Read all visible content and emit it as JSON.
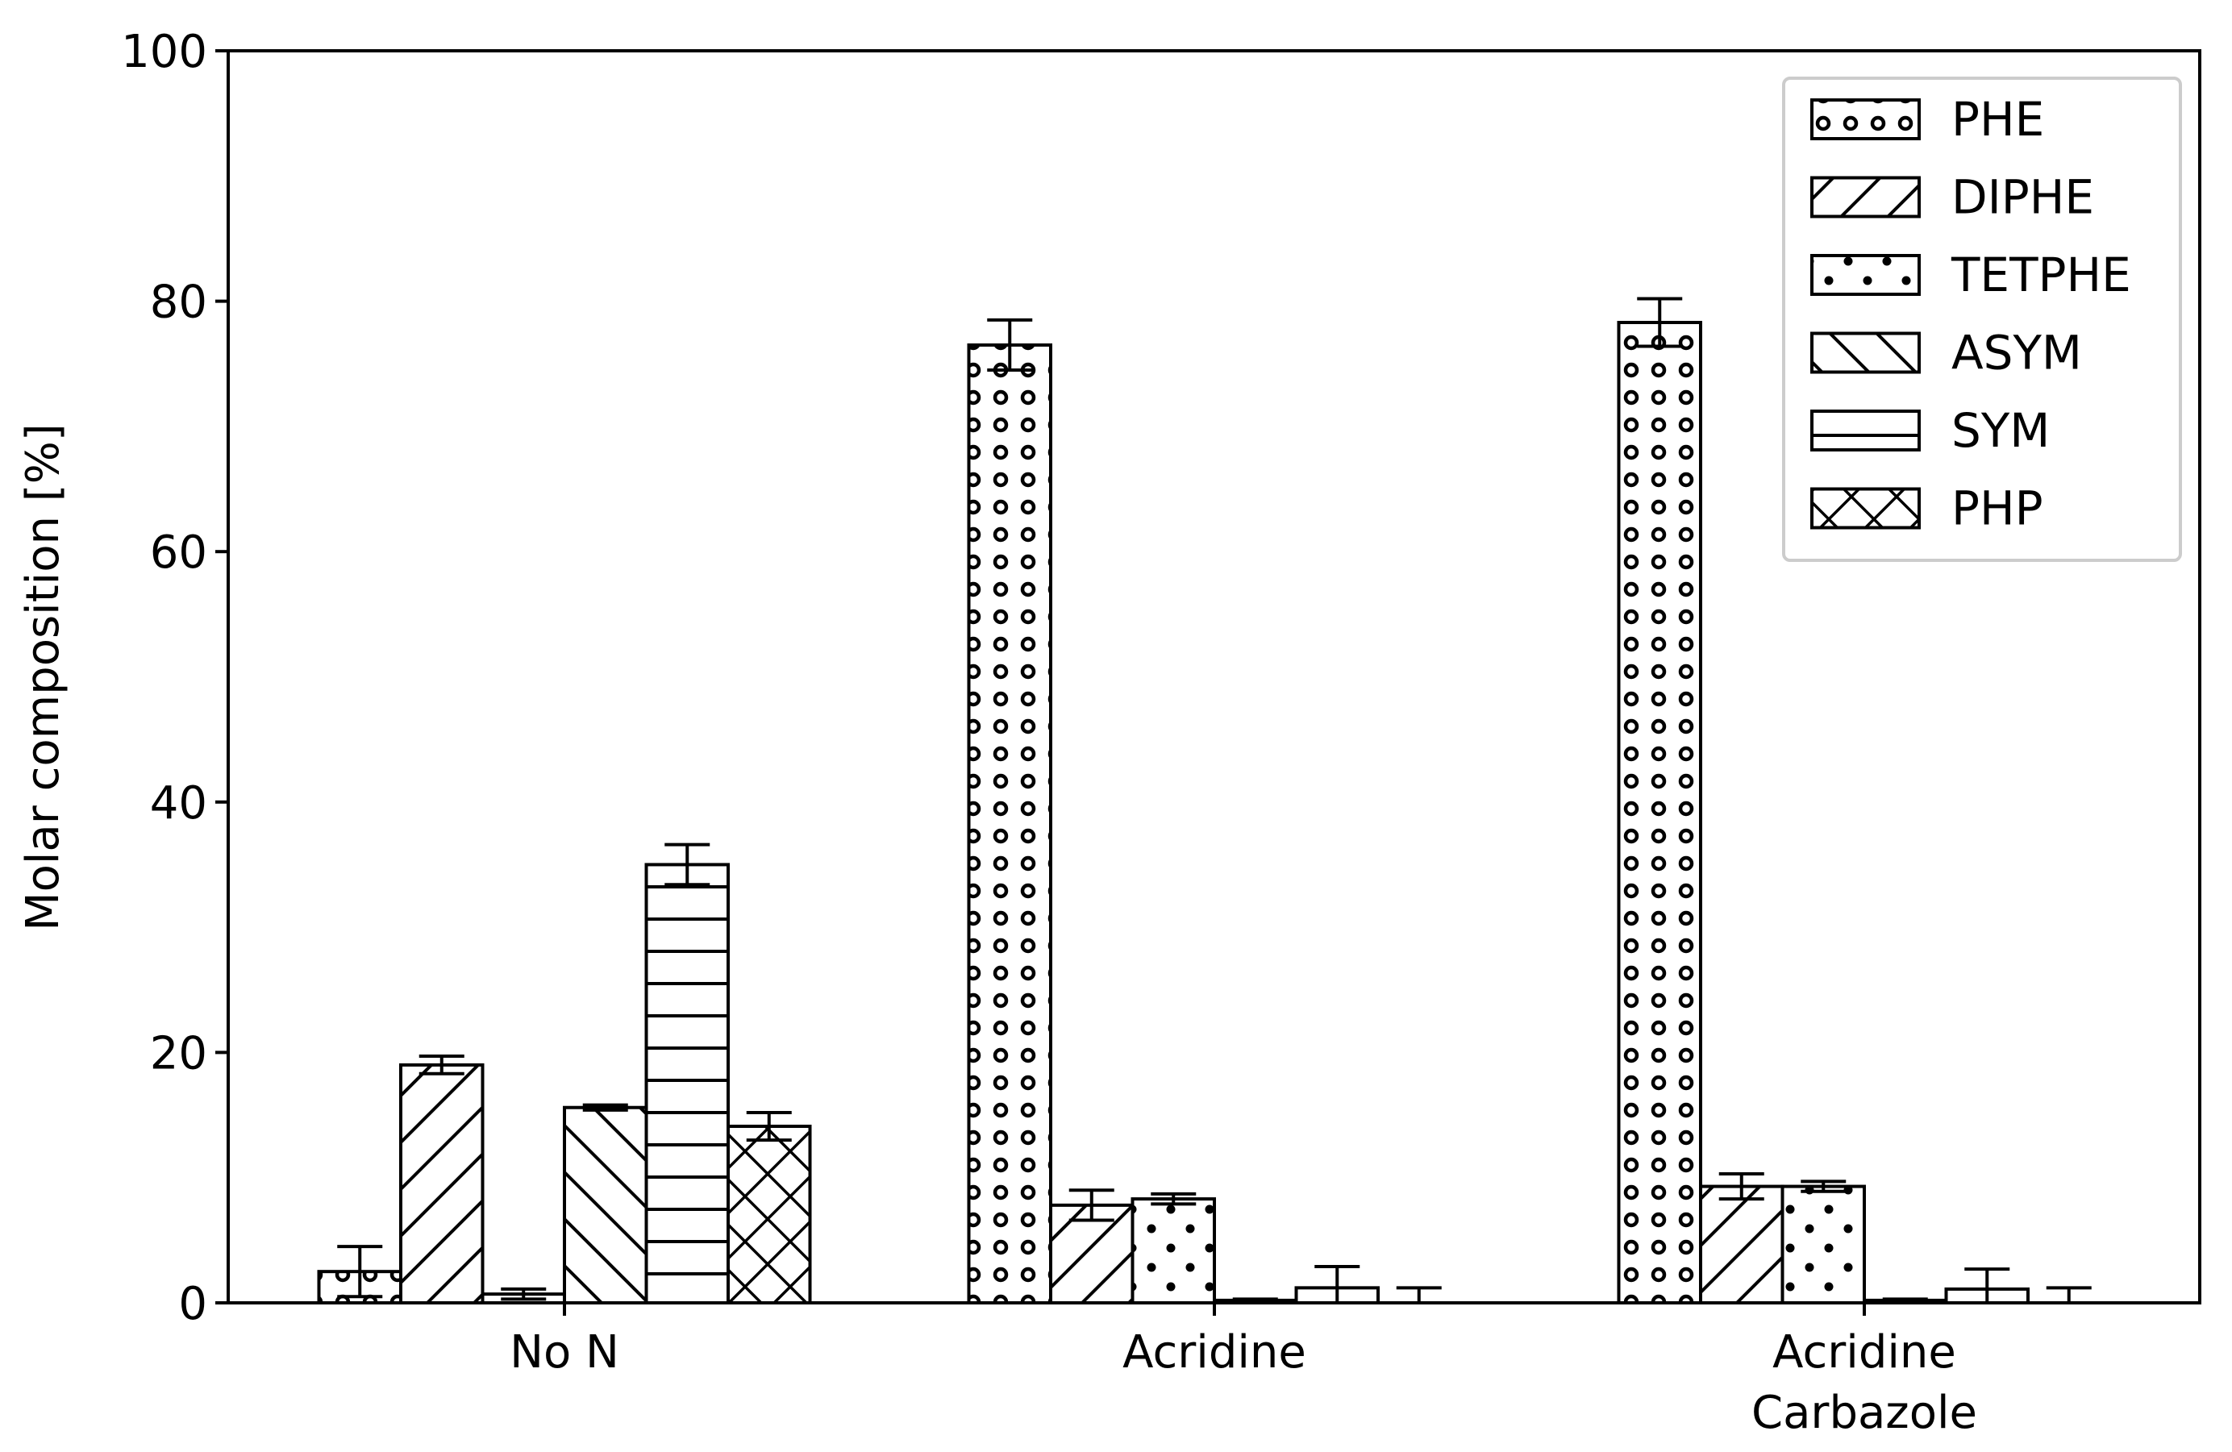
{
  "chart_data": {
    "type": "bar",
    "title": "",
    "xlabel": "",
    "ylabel": "Molar composition [%]",
    "ylim": [
      0,
      100
    ],
    "yticks": [
      0,
      20,
      40,
      60,
      80,
      100
    ],
    "grid": false,
    "legend_position": "top-right",
    "categories": [
      [
        "No N"
      ],
      [
        "Acridine"
      ],
      [
        "Acridine",
        "Carbazole"
      ]
    ],
    "series": [
      {
        "name": "PHE",
        "pattern": "big-circles",
        "values": [
          2.5,
          76.5,
          78.3
        ],
        "errors": [
          2.0,
          2.0,
          1.9
        ]
      },
      {
        "name": "DIPHE",
        "pattern": "diag-forward",
        "values": [
          19.0,
          7.8,
          9.3
        ],
        "errors": [
          0.7,
          1.2,
          1.0
        ]
      },
      {
        "name": "TETPHE",
        "pattern": "dots",
        "values": [
          0.7,
          8.3,
          9.3
        ],
        "errors": [
          0.4,
          0.4,
          0.4
        ]
      },
      {
        "name": "ASYM",
        "pattern": "diag-back",
        "values": [
          15.6,
          0.2,
          0.2
        ],
        "errors": [
          0.2,
          0.1,
          0.1
        ]
      },
      {
        "name": "SYM",
        "pattern": "horizontal",
        "values": [
          35.0,
          1.2,
          1.1
        ],
        "errors": [
          1.6,
          1.7,
          1.6
        ]
      },
      {
        "name": "PHP",
        "pattern": "crosshatch",
        "values": [
          14.1,
          0.0,
          0.0
        ],
        "errors": [
          1.1,
          1.2,
          1.2
        ]
      }
    ],
    "colors": {
      "stroke": "#000000",
      "fill": "#ffffff"
    }
  }
}
